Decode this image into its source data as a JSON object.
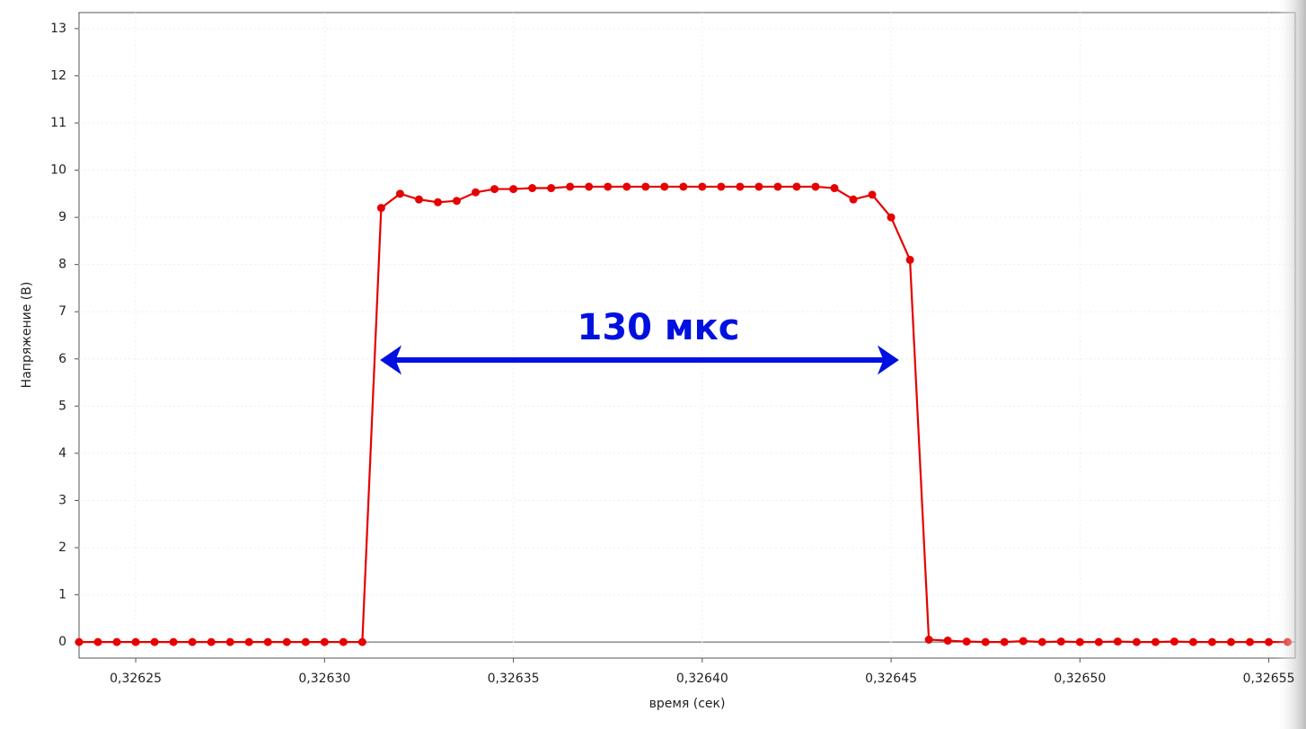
{
  "chart_data": {
    "type": "line",
    "x": [
      0.326235,
      0.32624,
      0.326245,
      0.32625,
      0.326255,
      0.32626,
      0.326265,
      0.32627,
      0.326275,
      0.32628,
      0.326285,
      0.32629,
      0.326295,
      0.3263,
      0.326305,
      0.32631,
      0.326315,
      0.32632,
      0.326325,
      0.32633,
      0.326335,
      0.32634,
      0.326345,
      0.32635,
      0.326355,
      0.32636,
      0.326365,
      0.32637,
      0.326375,
      0.32638,
      0.326385,
      0.32639,
      0.326395,
      0.3264,
      0.326405,
      0.32641,
      0.326415,
      0.32642,
      0.326425,
      0.32643,
      0.326435,
      0.32644,
      0.326445,
      0.32645,
      0.326455,
      0.32646,
      0.326465,
      0.32647,
      0.326475,
      0.32648,
      0.326485,
      0.32649,
      0.326495,
      0.3265,
      0.326505,
      0.32651,
      0.326515,
      0.32652,
      0.326525,
      0.32653,
      0.326535,
      0.32654,
      0.326545,
      0.32655,
      0.326555
    ],
    "series": [
      {
        "color": "#e60000",
        "values": [
          0,
          0,
          0,
          0,
          0,
          0,
          0,
          0,
          0,
          0,
          0,
          0,
          0,
          0,
          0,
          0,
          9.2,
          9.5,
          9.38,
          9.32,
          9.35,
          9.53,
          9.6,
          9.6,
          9.62,
          9.62,
          9.65,
          9.65,
          9.65,
          9.65,
          9.65,
          9.65,
          9.65,
          9.65,
          9.65,
          9.65,
          9.65,
          9.65,
          9.65,
          9.65,
          9.62,
          9.38,
          9.48,
          9.0,
          8.1,
          0.05,
          0.03,
          0.01,
          0,
          0,
          0.02,
          0,
          0.01,
          0,
          0,
          0.01,
          0,
          0,
          0.01,
          0,
          0,
          0,
          0,
          0,
          0
        ]
      }
    ],
    "xlabel": "время (сек)",
    "ylabel": "Напряжение (В)",
    "annotation": "130 мкс",
    "xlim": [
      0.326235,
      0.326557
    ],
    "ylim": [
      -0.34,
      13.34
    ],
    "xticks": [
      {
        "value": 0.32625,
        "label": "0,32625"
      },
      {
        "value": 0.3263,
        "label": "0,32630"
      },
      {
        "value": 0.32635,
        "label": "0,32635"
      },
      {
        "value": 0.3264,
        "label": "0,32640"
      },
      {
        "value": 0.32645,
        "label": "0,32645"
      },
      {
        "value": 0.3265,
        "label": "0,32650"
      },
      {
        "value": 0.32655,
        "label": "0,32655"
      }
    ],
    "yticks": [
      0,
      1,
      2,
      3,
      4,
      5,
      6,
      7,
      8,
      9,
      10,
      11,
      12,
      13
    ],
    "grid": true
  }
}
